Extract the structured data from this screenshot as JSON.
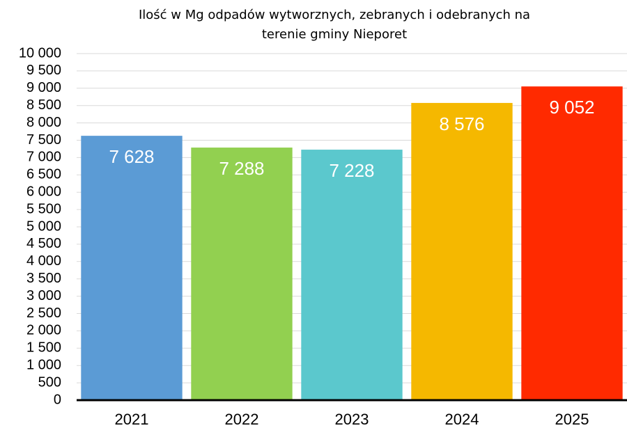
{
  "chart_data": {
    "type": "bar",
    "title": [
      "Ilość w Mg odpadów wytworznych, zebranych i odebranych na",
      "terenie gminy Nieporet"
    ],
    "categories": [
      "2021",
      "2022",
      "2023",
      "2024",
      "2025"
    ],
    "values": [
      7628,
      7288,
      7228,
      8576,
      9052
    ],
    "value_labels": [
      "7 628",
      "7 288",
      "7 228",
      "8 576",
      "9 052"
    ],
    "colors": [
      "#5b9bd5",
      "#92d050",
      "#5bc8cd",
      "#f5b800",
      "#ff2a00"
    ],
    "ylim": [
      0,
      10000
    ],
    "yticks": [
      0,
      500,
      {
        "value": 1000,
        "label": "1 000"
      },
      {
        "value": 1500,
        "label": "1 500"
      },
      {
        "value": 2000,
        "label": "2 000"
      },
      {
        "value": 2500,
        "label": "2 500"
      },
      {
        "value": 3000,
        "label": "3 000"
      },
      {
        "value": 3500,
        "label": "3 500"
      },
      {
        "value": 4000,
        "label": "4 000"
      },
      {
        "value": 4500,
        "label": "4 500"
      },
      {
        "value": 5000,
        "label": "5 000"
      },
      {
        "value": 5500,
        "label": "5 500"
      },
      {
        "value": 6000,
        "label": "6 000"
      },
      {
        "value": 6500,
        "label": "6 500"
      },
      {
        "value": 7000,
        "label": "7 000"
      },
      {
        "value": 7500,
        "label": "7 500"
      },
      {
        "value": 8000,
        "label": "8 000"
      },
      {
        "value": 8500,
        "label": "8 500"
      },
      {
        "value": 9000,
        "label": "9 000"
      },
      {
        "value": 9500,
        "label": "9 500"
      },
      {
        "value": 10000,
        "label": "10 000"
      }
    ],
    "grid": true
  }
}
